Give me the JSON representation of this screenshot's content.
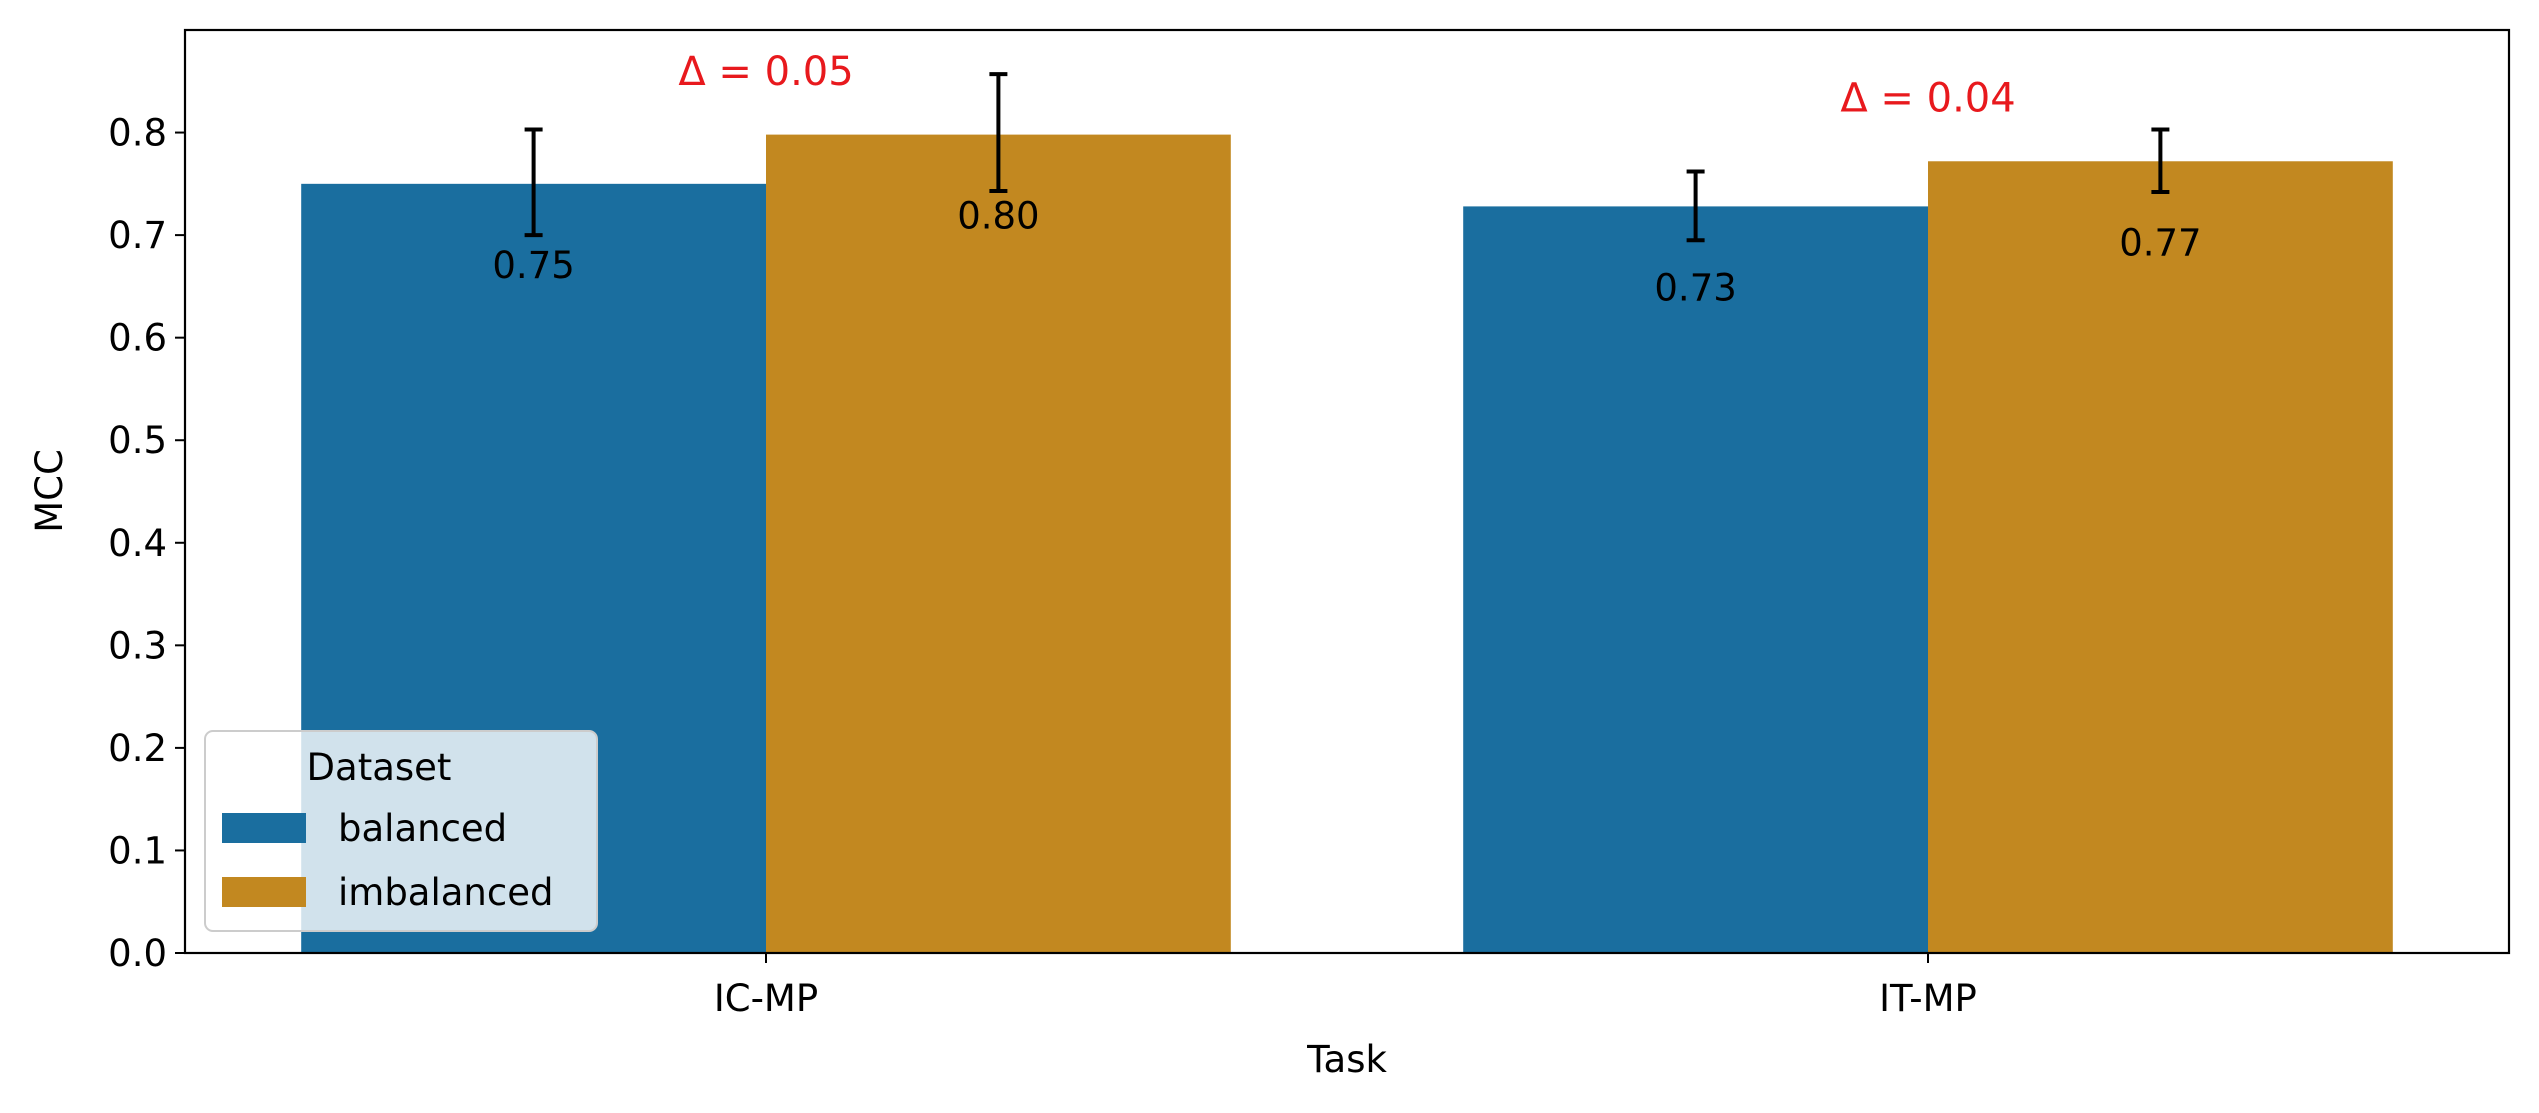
{
  "chart_data": {
    "type": "bar",
    "title": "",
    "xlabel": "Task",
    "ylabel": "MCC",
    "categories": [
      "IC-MP",
      "IT-MP"
    ],
    "series": [
      {
        "name": "balanced",
        "color": "#1a6e9f",
        "values": [
          0.75,
          0.728
        ],
        "labels": [
          "0.75",
          "0.73"
        ],
        "err_low": [
          0.7,
          0.695
        ],
        "err_high": [
          0.803,
          0.762
        ]
      },
      {
        "name": "imbalanced",
        "color": "#c28820",
        "values": [
          0.798,
          0.772
        ],
        "labels": [
          "0.80",
          "0.77"
        ],
        "err_low": [
          0.743,
          0.742
        ],
        "err_high": [
          0.857,
          0.803
        ]
      }
    ],
    "ylim": [
      0,
      0.9
    ],
    "yticks": [
      "0.0",
      "0.1",
      "0.2",
      "0.3",
      "0.4",
      "0.5",
      "0.6",
      "0.7",
      "0.8"
    ],
    "legend": {
      "title": "Dataset",
      "position": "bottom-left"
    },
    "annotations": [
      {
        "text": "Δ = 0.05",
        "category": "IC-MP",
        "y": 0.858,
        "color": "#e8191d"
      },
      {
        "text": "Δ = 0.04",
        "category": "IT-MP",
        "y": 0.832,
        "color": "#e8191d"
      }
    ],
    "grid": false
  }
}
